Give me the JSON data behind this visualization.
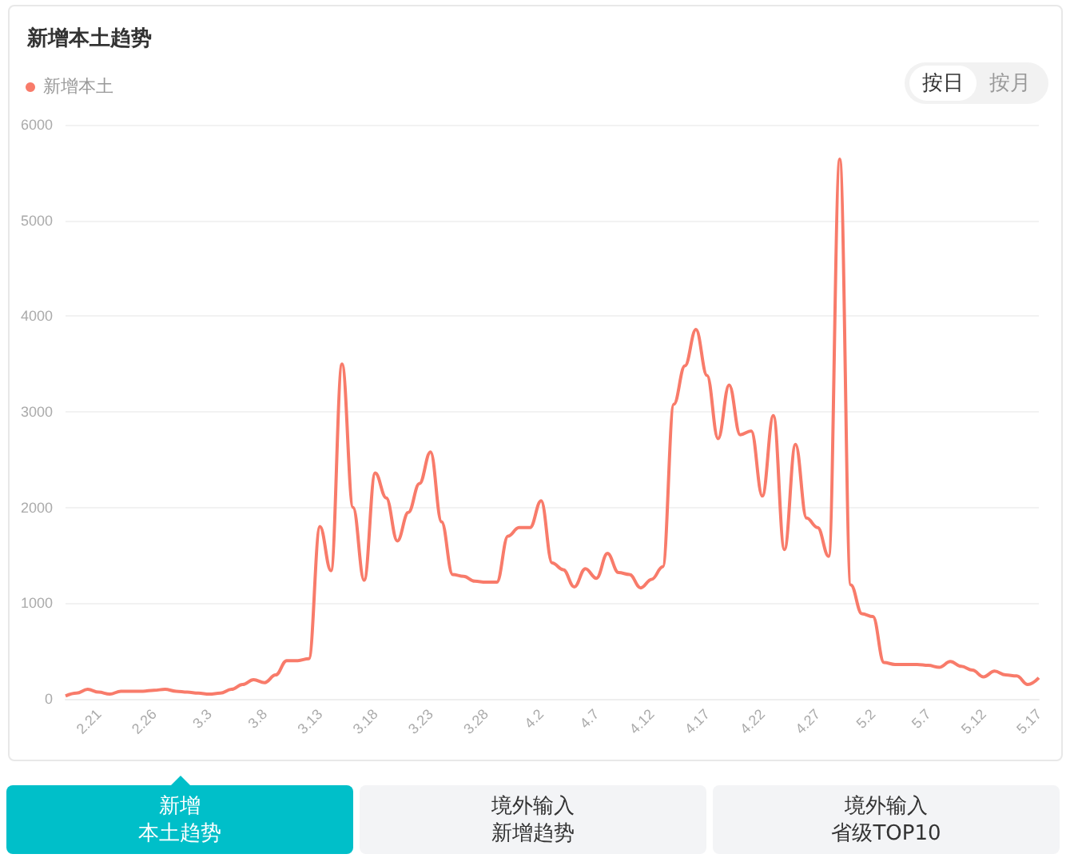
{
  "chart_data": {
    "type": "line",
    "title": "新增本土趋势",
    "categories": [
      null,
      null,
      null,
      "2.21",
      null,
      null,
      null,
      null,
      "2.26",
      null,
      null,
      null,
      null,
      "3.3",
      null,
      null,
      null,
      null,
      "3.8",
      null,
      null,
      null,
      null,
      "3.13",
      null,
      null,
      null,
      null,
      "3.18",
      null,
      null,
      null,
      null,
      "3.23",
      null,
      null,
      null,
      null,
      "3.28",
      null,
      null,
      null,
      null,
      "4.2",
      null,
      null,
      null,
      null,
      "4.7",
      null,
      null,
      null,
      null,
      "4.12",
      null,
      null,
      null,
      null,
      "4.17",
      null,
      null,
      null,
      null,
      "4.22",
      null,
      null,
      null,
      null,
      "4.27",
      null,
      null,
      null,
      null,
      "5.2",
      null,
      null,
      null,
      null,
      "5.7",
      null,
      null,
      null,
      null,
      "5.12",
      null,
      null,
      null,
      null,
      "5.17"
    ],
    "series": [
      {
        "name": "新增本土",
        "color": "#f87b6a",
        "values": [
          30,
          60,
          100,
          70,
          50,
          80,
          80,
          80,
          90,
          100,
          80,
          70,
          60,
          50,
          60,
          100,
          150,
          200,
          170,
          250,
          400,
          400,
          420,
          1800,
          1340,
          3500,
          2000,
          1240,
          2360,
          2100,
          1650,
          1950,
          2250,
          2580,
          1850,
          1300,
          1280,
          1230,
          1220,
          1220,
          1700,
          1790,
          1790,
          2070,
          1420,
          1350,
          1170,
          1360,
          1260,
          1520,
          1320,
          1300,
          1160,
          1250,
          1380,
          3080,
          3480,
          3860,
          3380,
          2720,
          3280,
          2760,
          2800,
          2120,
          2960,
          1560,
          2660,
          1890,
          1790,
          1490,
          5640,
          1190,
          890,
          860,
          380,
          360,
          360,
          360,
          350,
          330,
          390,
          340,
          300,
          230,
          290,
          250,
          240,
          150,
          220
        ]
      }
    ],
    "ylim": [
      0,
      6000
    ],
    "yticks": [
      0,
      1000,
      2000,
      3000,
      4000,
      5000,
      6000
    ],
    "grid": "y",
    "legend": "top left",
    "marker": "none",
    "line_style": "solid",
    "annotations": [
      "按日",
      "按月",
      "新增",
      "本土趋势",
      "境外输入",
      "新增趋势",
      "境外输入",
      "省级TOP10"
    ]
  }
}
